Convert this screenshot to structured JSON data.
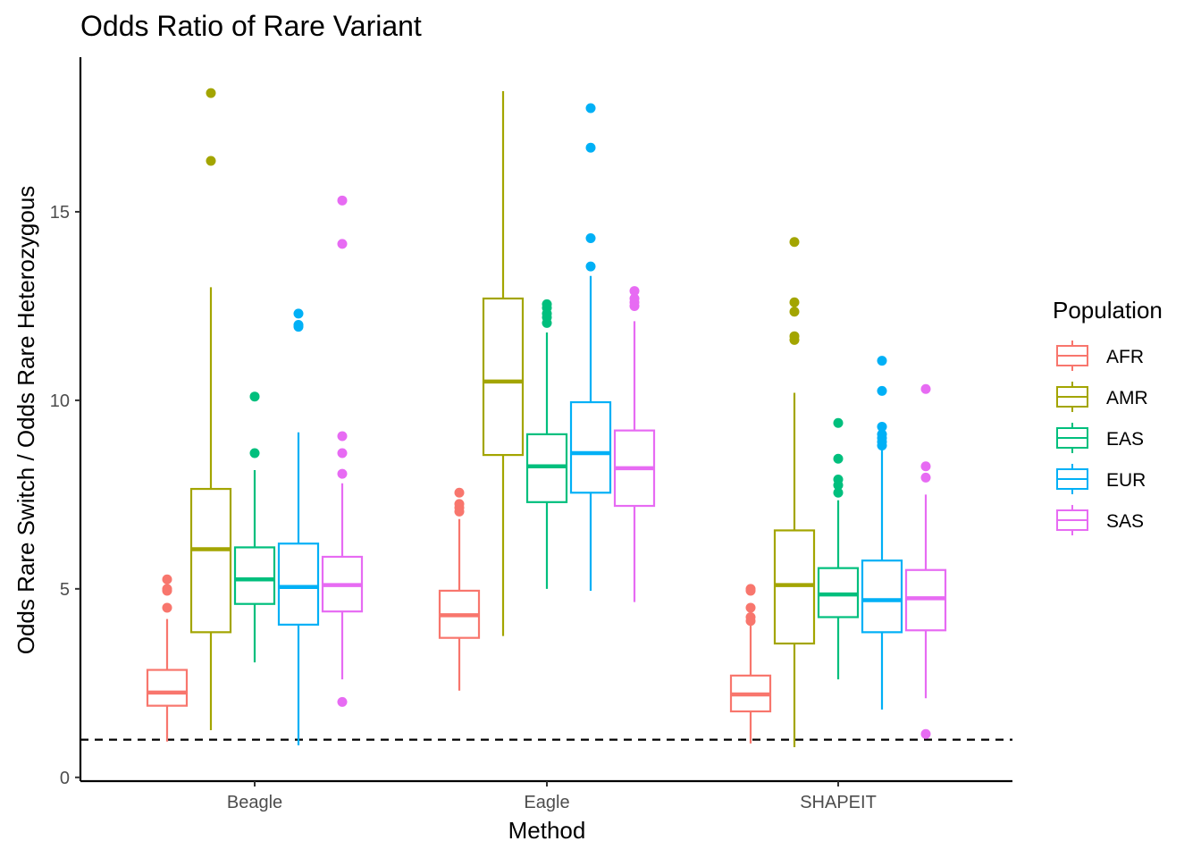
{
  "chart_data": {
    "type": "boxplot",
    "title": "Odds Ratio of Rare Variant",
    "xlabel": "Method",
    "ylabel": "Odds Rare Switch / Odds Rare Heterozygous",
    "categories": [
      "Beagle",
      "Eagle",
      "SHAPEIT"
    ],
    "ylim": [
      -0.1,
      19.1
    ],
    "yticks": [
      0,
      5,
      10,
      15
    ],
    "grid": false,
    "legend": {
      "title": "Population",
      "position": "right"
    },
    "reference_line": {
      "y": 1,
      "style": "dashed",
      "color": "#000000"
    },
    "series": [
      {
        "name": "AFR",
        "color": "#F8766D",
        "boxes": [
          {
            "category": "Beagle",
            "min": 0.95,
            "q1": 1.9,
            "median": 2.25,
            "q3": 2.85,
            "max": 4.2,
            "outliers": [
              4.5,
              4.95,
              5.0,
              5.25
            ]
          },
          {
            "category": "Eagle",
            "min": 2.3,
            "q1": 3.7,
            "median": 4.3,
            "q3": 4.95,
            "max": 6.85,
            "outliers": [
              7.05,
              7.15,
              7.25,
              7.55
            ]
          },
          {
            "category": "SHAPEIT",
            "min": 0.9,
            "q1": 1.75,
            "median": 2.2,
            "q3": 2.7,
            "max": 4.05,
            "outliers": [
              4.15,
              4.25,
              4.5,
              4.95,
              5.0
            ]
          }
        ]
      },
      {
        "name": "AMR",
        "color": "#A3A500",
        "boxes": [
          {
            "category": "Beagle",
            "min": 1.25,
            "q1": 3.85,
            "median": 6.05,
            "q3": 7.65,
            "max": 13.0,
            "outliers": [
              16.35,
              18.15
            ]
          },
          {
            "category": "Eagle",
            "min": 3.75,
            "q1": 8.55,
            "median": 10.5,
            "q3": 12.7,
            "max": 18.2,
            "outliers": []
          },
          {
            "category": "SHAPEIT",
            "min": 0.8,
            "q1": 3.55,
            "median": 5.1,
            "q3": 6.55,
            "max": 10.2,
            "outliers": [
              11.6,
              11.7,
              12.35,
              12.6,
              14.2
            ]
          }
        ]
      },
      {
        "name": "EAS",
        "color": "#00BF7D",
        "boxes": [
          {
            "category": "Beagle",
            "min": 3.05,
            "q1": 4.6,
            "median": 5.25,
            "q3": 6.1,
            "max": 8.15,
            "outliers": [
              8.6,
              10.1
            ]
          },
          {
            "category": "Eagle",
            "min": 5.0,
            "q1": 7.3,
            "median": 8.25,
            "q3": 9.1,
            "max": 11.8,
            "outliers": [
              12.05,
              12.2,
              12.3,
              12.45,
              12.55
            ]
          },
          {
            "category": "SHAPEIT",
            "min": 2.6,
            "q1": 4.25,
            "median": 4.85,
            "q3": 5.55,
            "max": 7.35,
            "outliers": [
              7.55,
              7.75,
              7.9,
              8.45,
              9.4
            ]
          }
        ]
      },
      {
        "name": "EUR",
        "color": "#00B0F6",
        "boxes": [
          {
            "category": "Beagle",
            "min": 0.85,
            "q1": 4.05,
            "median": 5.05,
            "q3": 6.2,
            "max": 9.15,
            "outliers": [
              11.95,
              12.0,
              12.3
            ]
          },
          {
            "category": "Eagle",
            "min": 4.95,
            "q1": 7.55,
            "median": 8.6,
            "q3": 9.95,
            "max": 13.3,
            "outliers": [
              13.55,
              14.3,
              16.7,
              17.75
            ]
          },
          {
            "category": "SHAPEIT",
            "min": 1.8,
            "q1": 3.85,
            "median": 4.7,
            "q3": 5.75,
            "max": 8.7,
            "outliers": [
              8.8,
              8.9,
              9.0,
              9.1,
              9.3,
              10.25,
              11.05
            ]
          }
        ]
      },
      {
        "name": "SAS",
        "color": "#E76BF3",
        "boxes": [
          {
            "category": "Beagle",
            "min": 2.6,
            "q1": 4.4,
            "median": 5.1,
            "q3": 5.85,
            "max": 7.8,
            "outliers": [
              2.0,
              8.05,
              8.6,
              9.05,
              14.15,
              15.3
            ]
          },
          {
            "category": "Eagle",
            "min": 4.65,
            "q1": 7.2,
            "median": 8.2,
            "q3": 9.2,
            "max": 12.1,
            "outliers": [
              12.5,
              12.6,
              12.7,
              12.9
            ]
          },
          {
            "category": "SHAPEIT",
            "min": 2.1,
            "q1": 3.9,
            "median": 4.75,
            "q3": 5.5,
            "max": 7.5,
            "outliers": [
              1.15,
              7.95,
              8.25,
              10.3
            ]
          }
        ]
      }
    ]
  }
}
